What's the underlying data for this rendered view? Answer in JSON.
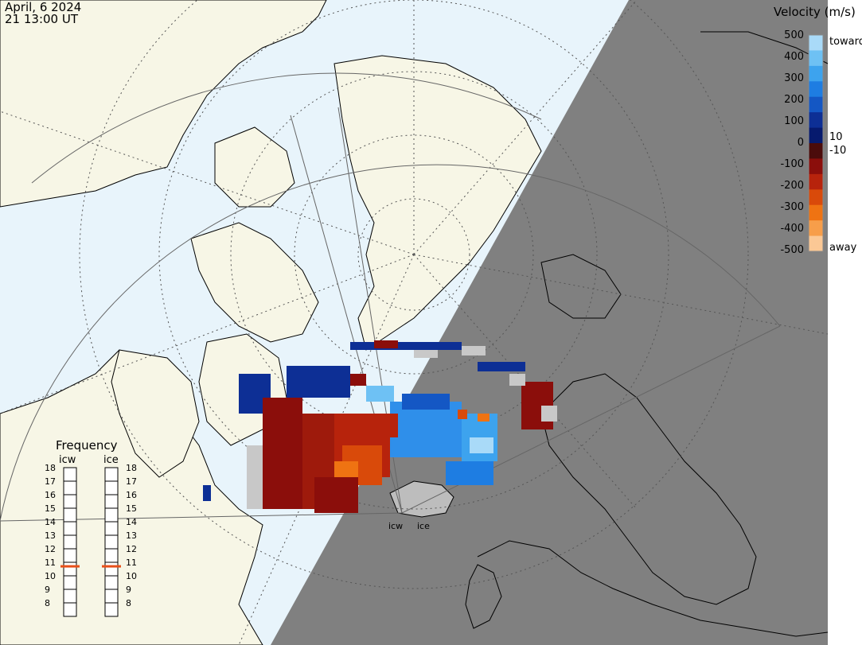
{
  "header": {
    "date": "April, 6 2024",
    "time": "21 13:00 UT"
  },
  "colors": {
    "ocean": "#e8f4fb",
    "land": "#f7f6e6",
    "night": "#808080",
    "coast": "#000000",
    "grid": "#555555"
  },
  "legend": {
    "title": "Velocity (m/s)",
    "ticks": [
      "500",
      "400",
      "300",
      "200",
      "100",
      "0",
      "-100",
      "-200",
      "-300",
      "-400",
      "-500"
    ],
    "inner_ticks": [
      "10",
      "-10"
    ],
    "toward_label": "toward",
    "away_label": "away",
    "colors": [
      "#a9daf8",
      "#6ec1f4",
      "#3da3ee",
      "#1e7de2",
      "#1457c4",
      "#0d2f95",
      "#061a6e",
      "#4b0c0b",
      "#8b0e0b",
      "#b7230c",
      "#d94a0a",
      "#ef7312",
      "#f79e4a",
      "#fbc895"
    ]
  },
  "frequency": {
    "title": "Frequency",
    "col_a": "icw",
    "col_b": "ice",
    "levels": [
      "18",
      "17",
      "16",
      "15",
      "14",
      "13",
      "12",
      "11",
      "10",
      "9",
      "8"
    ],
    "icw_value": 10.7,
    "ice_value": 10.7,
    "marker_color": "#e8501a"
  },
  "stations": {
    "a": "icw",
    "b": "ice"
  }
}
